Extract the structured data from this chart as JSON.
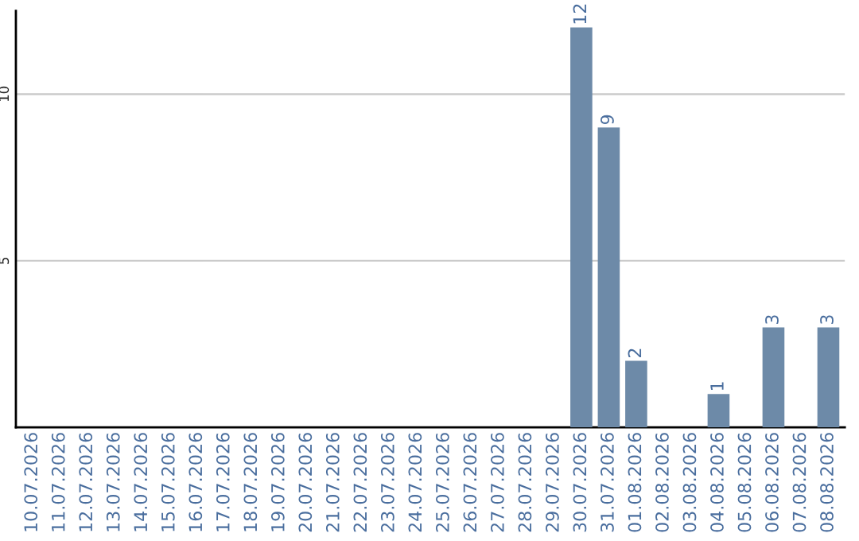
{
  "chart_data": {
    "type": "bar",
    "categories": [
      "10.07.2026",
      "11.07.2026",
      "12.07.2026",
      "13.07.2026",
      "14.07.2026",
      "15.07.2026",
      "16.07.2026",
      "17.07.2026",
      "18.07.2026",
      "19.07.2026",
      "20.07.2026",
      "21.07.2026",
      "22.07.2026",
      "23.07.2026",
      "24.07.2026",
      "25.07.2026",
      "26.07.2026",
      "27.07.2026",
      "28.07.2026",
      "29.07.2026",
      "30.07.2026",
      "31.07.2026",
      "01.08.2026",
      "02.08.2026",
      "03.08.2026",
      "04.08.2026",
      "05.08.2026",
      "06.08.2026",
      "07.08.2026",
      "08.08.2026"
    ],
    "values": [
      null,
      null,
      null,
      null,
      null,
      null,
      null,
      null,
      null,
      null,
      null,
      null,
      null,
      null,
      null,
      null,
      null,
      null,
      null,
      null,
      12,
      9,
      2,
      null,
      null,
      1,
      null,
      3,
      null,
      3
    ],
    "value_labels": [
      null,
      null,
      null,
      null,
      null,
      null,
      null,
      null,
      null,
      null,
      null,
      null,
      null,
      null,
      null,
      null,
      null,
      null,
      null,
      null,
      "12",
      "9",
      "2",
      null,
      null,
      "1",
      null,
      "3",
      null,
      "3"
    ],
    "color": "#6d8aa8",
    "ylim": [
      0,
      12.5
    ],
    "yticks": [
      5,
      10
    ],
    "grid": "y"
  }
}
